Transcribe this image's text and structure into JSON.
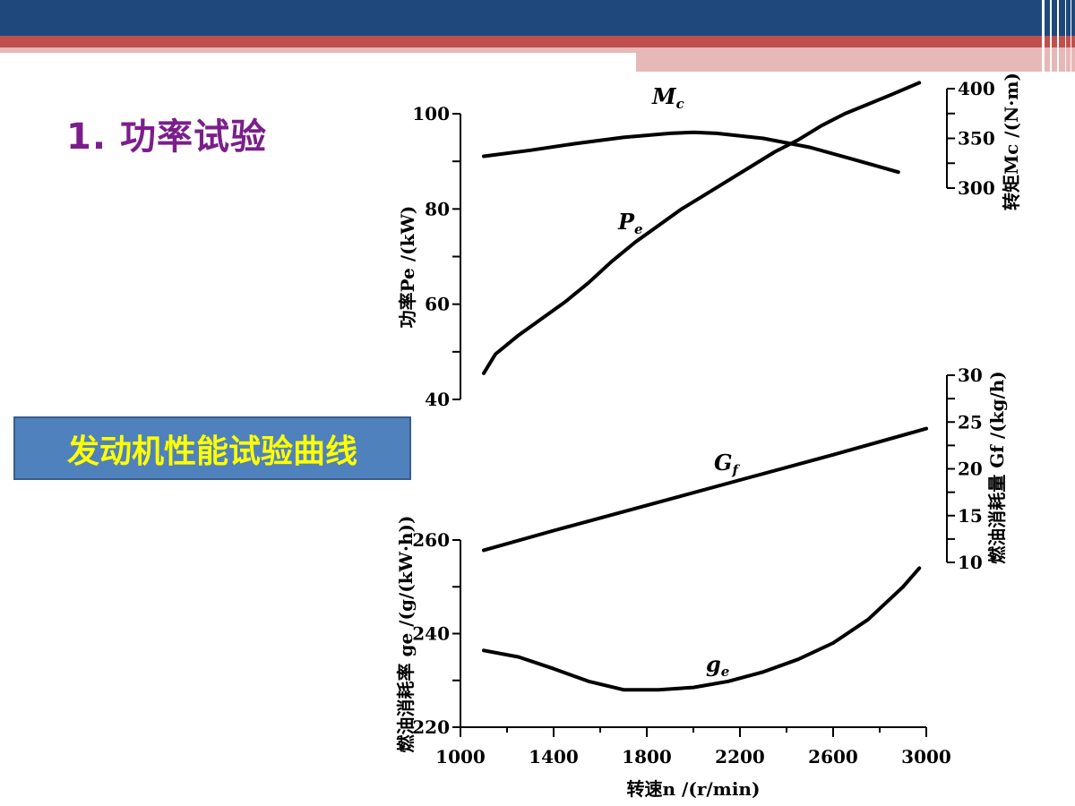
{
  "slide": {
    "title": "1. 功率试验",
    "caption": "发动机性能试验曲线"
  },
  "colors": {
    "band_navy": "#1f497d",
    "band_red": "#c0504d",
    "band_pink": "#e6b8b7",
    "title": "#7b1e8c",
    "caption_bg": "#4f81bd",
    "caption_text": "#ffff00"
  },
  "chart_data": {
    "type": "line",
    "title": "",
    "xlabel": "转速n /(r/min)",
    "x_ticks": [
      1000,
      1400,
      1800,
      2200,
      2600,
      3000
    ],
    "x_range": [
      1000,
      3000
    ],
    "axes": {
      "power": {
        "label": "功率Pe /(kW)",
        "range": [
          40,
          100
        ],
        "ticks": [
          40,
          60,
          80,
          100
        ],
        "side": "left",
        "panel": "top"
      },
      "torque": {
        "label": "转矩Mc /(N·m)",
        "range": [
          300,
          400
        ],
        "ticks": [
          300,
          350,
          400
        ],
        "side": "right",
        "panel": "top"
      },
      "fuel_rate": {
        "label": "燃油消耗量 Gf /(kg/h)",
        "range": [
          10,
          30
        ],
        "ticks": [
          10,
          15,
          20,
          25,
          30
        ],
        "side": "right",
        "panel": "bottom"
      },
      "bsfc": {
        "label": "燃油消耗率 ge /(g/(kW·h))",
        "range": [
          220,
          260
        ],
        "ticks": [
          220,
          240,
          260
        ],
        "side": "left",
        "panel": "bottom"
      }
    },
    "series": [
      {
        "name": "Mc",
        "axis": "torque",
        "x": [
          1100,
          1300,
          1500,
          1700,
          1900,
          2000,
          2100,
          2300,
          2500,
          2700,
          2880
        ],
        "y": [
          332,
          338,
          345,
          351,
          355,
          356,
          355,
          350,
          341,
          328,
          316
        ]
      },
      {
        "name": "Pe",
        "axis": "power",
        "x": [
          1100,
          1150,
          1250,
          1350,
          1450,
          1550,
          1650,
          1750,
          1850,
          1950,
          2050,
          2150,
          2250,
          2350,
          2450,
          2550,
          2650,
          2750,
          2850,
          2970
        ],
        "y": [
          45.5,
          49.5,
          53.5,
          57.0,
          60.5,
          64.5,
          69.0,
          73.0,
          76.5,
          80.0,
          83.0,
          86.0,
          89.0,
          92.0,
          94.5,
          97.5,
          100.0,
          102.0,
          104.0,
          106.5
        ]
      },
      {
        "name": "Gf",
        "axis": "fuel_rate",
        "x": [
          1100,
          1400,
          1800,
          2200,
          2600,
          3000
        ],
        "y": [
          11.3,
          13.4,
          16.1,
          18.8,
          21.5,
          24.3
        ]
      },
      {
        "name": "ge",
        "axis": "bsfc",
        "x": [
          1100,
          1250,
          1400,
          1550,
          1700,
          1850,
          2000,
          2150,
          2300,
          2450,
          2600,
          2750,
          2900,
          2970
        ],
        "y": [
          236.4,
          235.0,
          232.5,
          229.8,
          228.0,
          228.0,
          228.5,
          229.8,
          231.8,
          234.5,
          238.0,
          243.0,
          250.0,
          254.0
        ]
      }
    ],
    "series_labels": {
      "Mc": {
        "base": "M",
        "sub": "c"
      },
      "Pe": {
        "base": "P",
        "sub": "e"
      },
      "Gf": {
        "base": "G",
        "sub": "f"
      },
      "ge": {
        "base": "g",
        "sub": "e"
      }
    },
    "grid": false,
    "legend": "none"
  }
}
